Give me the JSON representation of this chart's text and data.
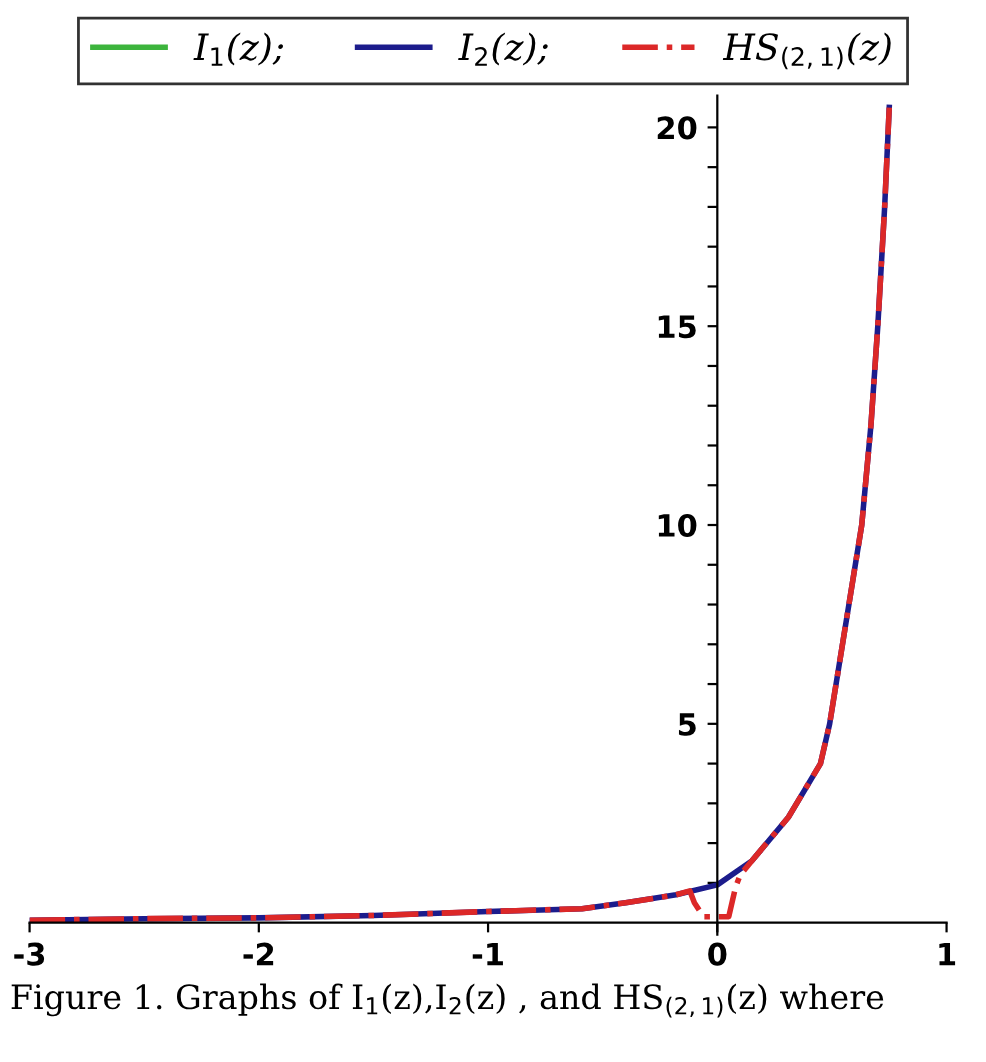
{
  "chart_data": {
    "type": "line",
    "series": [
      {
        "name": "I$_{1}$(z);",
        "color": "#3cb43c"
      },
      {
        "name": "I$_{2}$(z);",
        "color": "#1c1c8c",
        "x": [
          -3,
          -2.5,
          -2,
          -1.5,
          -1,
          -0.59,
          -0.4,
          -0.18,
          0,
          0.15,
          0.31,
          0.45,
          0.49,
          0.56,
          0.63,
          0.67,
          0.7,
          0.73,
          0.75
        ],
        "values": [
          0.06,
          0.1,
          0.12,
          0.18,
          0.28,
          0.35,
          0.5,
          0.7,
          0.95,
          1.55,
          2.65,
          4,
          5,
          7.5,
          10,
          12.5,
          15,
          18,
          20.5
        ]
      },
      {
        "name": "HS$_{(2,1)}$(z)",
        "color": "#dc2828",
        "line_style": "dashdot",
        "x": [
          -3,
          -2.5,
          -2,
          -1.5,
          -1,
          -0.59,
          -0.4,
          -0.18,
          -0.12,
          -0.1,
          -0.06,
          0.05,
          0.08,
          0.1,
          0.15,
          0.31,
          0.45,
          0.49,
          0.56,
          0.63,
          0.67,
          0.7,
          0.73,
          0.75
        ],
        "values": [
          0.06,
          0.1,
          0.12,
          0.18,
          0.28,
          0.35,
          0.5,
          0.7,
          0.8,
          0.5,
          0.15,
          0.15,
          0.9,
          1.2,
          1.55,
          2.65,
          4,
          5,
          7.5,
          10,
          12.5,
          15,
          18,
          20.5
        ]
      }
    ],
    "xlim": [
      -3,
      1
    ],
    "ylim": [
      -0.3,
      20.8
    ],
    "xticks": [
      -3,
      -2,
      -1,
      0,
      1
    ],
    "yticks": [
      {
        "value": 1,
        "label": null
      },
      {
        "value": 2,
        "label": null
      },
      {
        "value": 3,
        "label": null
      },
      {
        "value": 4,
        "label": null
      },
      5,
      {
        "value": 6,
        "label": null
      },
      {
        "value": 7,
        "label": null
      },
      {
        "value": 8,
        "label": null
      },
      {
        "value": 9,
        "label": null
      },
      10,
      {
        "value": 11,
        "label": null
      },
      {
        "value": 12,
        "label": null
      },
      {
        "value": 13,
        "label": null
      },
      {
        "value": 14,
        "label": null
      },
      15,
      {
        "value": 16,
        "label": null
      },
      {
        "value": 17,
        "label": null
      },
      {
        "value": 18,
        "label": null
      },
      {
        "value": 19,
        "label": null
      },
      20
    ],
    "legend": "top",
    "grid": false,
    "annotations": [
      "Figure 1. Graphs of I$_{1}$(z),I$_{2}$(z) , and HS$_{(2,1)}$(z) where"
    ]
  }
}
